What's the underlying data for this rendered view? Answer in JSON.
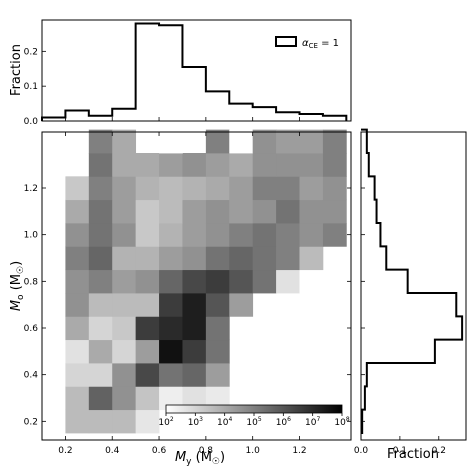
{
  "chart_data": [
    {
      "type": "step",
      "panel": "top-marginal",
      "ylabel": "Fraction",
      "xlim": [
        0.1,
        1.42
      ],
      "ylim": [
        0,
        0.29
      ],
      "yticks": [
        "0.0",
        "0.1",
        "0.2"
      ],
      "legend": {
        "label": "α",
        "sub": "CE",
        "suffix": " = 1",
        "position": "top-right"
      },
      "bin_edges": [
        0.1,
        0.2,
        0.3,
        0.4,
        0.5,
        0.6,
        0.7,
        0.8,
        0.9,
        1.0,
        1.1,
        1.2,
        1.3,
        1.4
      ],
      "values": [
        0.01,
        0.03,
        0.015,
        0.035,
        0.28,
        0.275,
        0.155,
        0.085,
        0.05,
        0.04,
        0.025,
        0.02,
        0.015
      ]
    },
    {
      "type": "step",
      "panel": "right-marginal",
      "orientation": "horizontal",
      "xlabel": "Fraction",
      "xlim": [
        0,
        0.27
      ],
      "xticks": [
        "0.0",
        "0.1",
        "0.2"
      ],
      "ylim": [
        0.12,
        1.44
      ],
      "bin_edges": [
        0.15,
        0.25,
        0.35,
        0.45,
        0.55,
        0.65,
        0.75,
        0.85,
        0.95,
        1.05,
        1.15,
        1.25,
        1.35,
        1.45
      ],
      "values": [
        0.003,
        0.01,
        0.015,
        0.19,
        0.26,
        0.245,
        0.12,
        0.065,
        0.05,
        0.04,
        0.035,
        0.02,
        0.015
      ]
    },
    {
      "type": "heatmap",
      "panel": "main",
      "xlabel": "M",
      "xlabel_sub": "y",
      "xlabel_unit": " (M",
      "ylabel": "M",
      "ylabel_sub": "o",
      "ylabel_unit": " (M",
      "sun_symbol": "☉",
      "xlim": [
        0.1,
        1.42
      ],
      "ylim": [
        0.12,
        1.44
      ],
      "xticks": [
        "0.2",
        "0.4",
        "0.6",
        "0.8",
        "1.0",
        "1.2"
      ],
      "yticks": [
        "0.2",
        "0.4",
        "0.6",
        "0.8",
        "1.0",
        "1.2"
      ],
      "x_edges": [
        0.2,
        0.3,
        0.4,
        0.5,
        0.6,
        0.7,
        0.8,
        0.9,
        1.0,
        1.1,
        1.2,
        1.3,
        1.4
      ],
      "y_edges": [
        0.15,
        0.25,
        0.35,
        0.45,
        0.55,
        0.65,
        0.75,
        0.85,
        0.95,
        1.05,
        1.15,
        1.25,
        1.35,
        1.45
      ],
      "log10_counts": [
        [
          3.6,
          3.6,
          3.6,
          2.6,
          null,
          null,
          null,
          null,
          null,
          null,
          null,
          null
        ],
        [
          3.6,
          5.7,
          4.6,
          3.4,
          2.4,
          2.7,
          2.5,
          null,
          null,
          null,
          null,
          null
        ],
        [
          3.0,
          3.0,
          4.6,
          6.3,
          5.3,
          5.6,
          4.3,
          null,
          null,
          null,
          null,
          null
        ],
        [
          2.7,
          4.0,
          3.0,
          4.3,
          7.6,
          6.6,
          5.3,
          null,
          null,
          null,
          null,
          null
        ],
        [
          4.0,
          3.0,
          3.3,
          6.6,
          7.0,
          7.3,
          5.3,
          null,
          null,
          null,
          null,
          null
        ],
        [
          4.6,
          3.6,
          3.6,
          3.6,
          6.6,
          7.3,
          6.0,
          4.3,
          null,
          null,
          null,
          null
        ],
        [
          4.6,
          5.0,
          4.3,
          4.6,
          5.6,
          6.3,
          6.6,
          6.0,
          5.3,
          2.7,
          1.7,
          2.0
        ],
        [
          5.0,
          5.6,
          3.8,
          3.8,
          4.3,
          4.6,
          5.3,
          5.6,
          5.3,
          5.0,
          3.6,
          null
        ],
        [
          4.6,
          5.3,
          4.6,
          3.3,
          3.8,
          4.3,
          4.6,
          5.0,
          5.3,
          5.0,
          4.6,
          5.0
        ],
        [
          4.0,
          5.3,
          4.3,
          3.3,
          3.6,
          4.3,
          4.6,
          4.3,
          4.6,
          5.3,
          4.6,
          4.6
        ],
        [
          3.3,
          5.0,
          4.3,
          3.8,
          3.6,
          3.8,
          4.0,
          4.3,
          5.0,
          5.0,
          4.3,
          4.6
        ],
        [
          null,
          5.3,
          4.0,
          4.0,
          4.3,
          4.6,
          4.3,
          4.0,
          4.6,
          4.6,
          4.6,
          5.0
        ],
        [
          null,
          5.0,
          4.0,
          null,
          1.5,
          null,
          5.0,
          2.0,
          4.6,
          4.3,
          4.3,
          5.0
        ]
      ],
      "colorbar": {
        "orientation": "horizontal",
        "colormap": "greys",
        "scale": "log",
        "range_log10": [
          2,
          8
        ],
        "tick_labels": [
          {
            "base": "10",
            "exp": "2"
          },
          {
            "base": "10",
            "exp": "3"
          },
          {
            "base": "10",
            "exp": "4"
          },
          {
            "base": "10",
            "exp": "5"
          },
          {
            "base": "10",
            "exp": "6"
          },
          {
            "base": "10",
            "exp": "7"
          },
          {
            "base": "10",
            "exp": "8"
          }
        ]
      }
    }
  ]
}
